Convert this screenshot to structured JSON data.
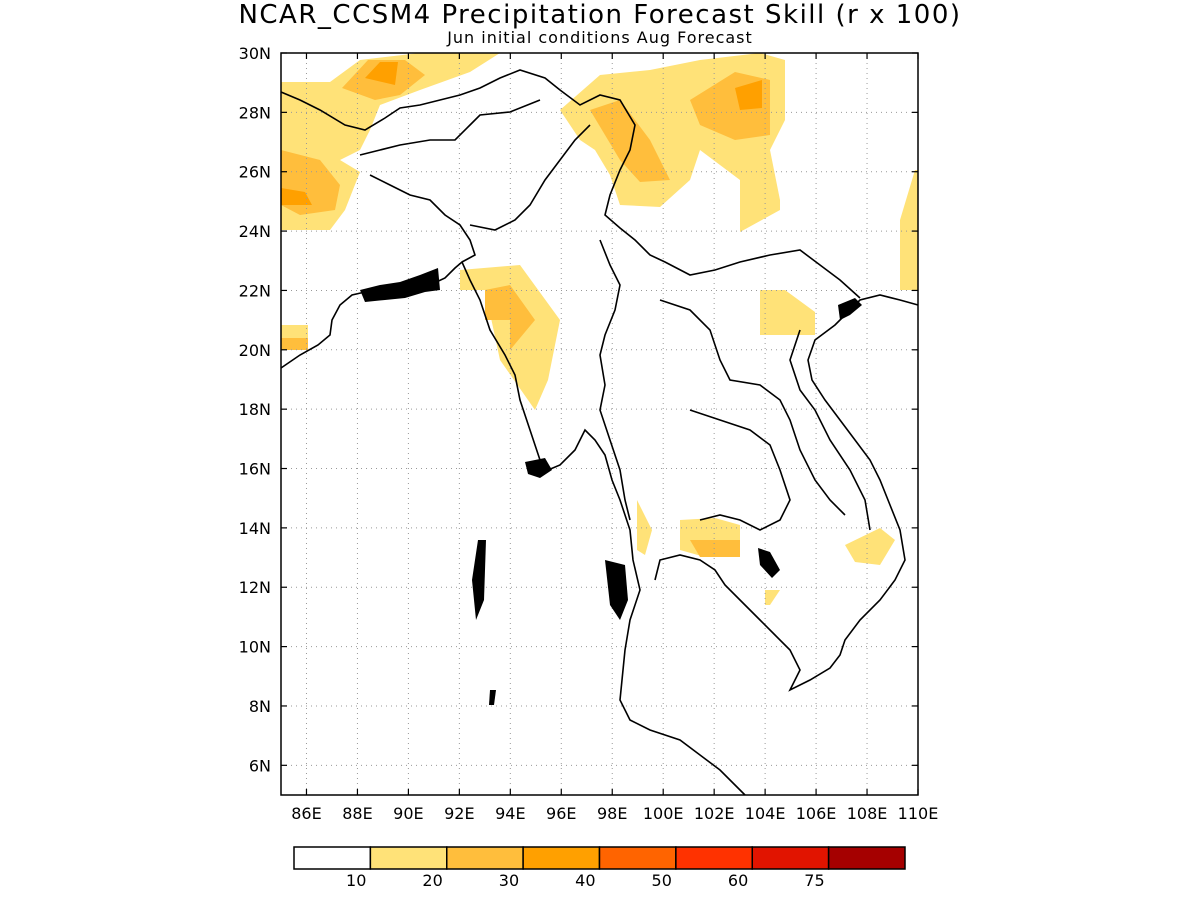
{
  "title": "NCAR_CCSM4 Precipitation Forecast Skill (r x 100)",
  "subtitle": "Jun initial conditions  Aug Forecast",
  "map": {
    "lon_range": [
      85,
      110
    ],
    "lat_range": [
      5,
      30
    ],
    "lon_ticks": [
      86,
      88,
      90,
      92,
      94,
      96,
      98,
      100,
      102,
      104,
      106,
      108,
      110
    ],
    "lat_ticks": [
      6,
      8,
      10,
      12,
      14,
      16,
      18,
      20,
      22,
      24,
      26,
      28,
      30
    ],
    "lon_tick_labels": [
      "86E",
      "88E",
      "90E",
      "92E",
      "94E",
      "96E",
      "98E",
      "100E",
      "102E",
      "104E",
      "106E",
      "108E",
      "110E"
    ],
    "lat_tick_labels": [
      "6N",
      "8N",
      "10N",
      "12N",
      "14N",
      "16N",
      "18N",
      "20N",
      "22N",
      "24N",
      "26N",
      "28N",
      "30N"
    ],
    "grid": "dotted",
    "skill_areas": [
      {
        "level": 10,
        "region": "northern Bangladesh / Himalaya west"
      },
      {
        "level": 10,
        "region": "Yunnan / northern Myanmar"
      },
      {
        "level": 10,
        "region": "western Myanmar coast"
      },
      {
        "level": 10,
        "region": "southern Laos"
      },
      {
        "level": 10,
        "region": "Cambodia / Thailand border"
      },
      {
        "level": 20,
        "region": "Bangladesh west"
      },
      {
        "level": 20,
        "region": "Yunnan east"
      },
      {
        "level": 30,
        "region": "small cores"
      }
    ]
  },
  "colorbar": {
    "colors": [
      "#ffffff",
      "#ffe278",
      "#ffbe3c",
      "#ffa000",
      "#ff6400",
      "#ff3200",
      "#e11400",
      "#a50000"
    ],
    "labels": [
      "10",
      "20",
      "30",
      "40",
      "50",
      "60",
      "75"
    ]
  }
}
